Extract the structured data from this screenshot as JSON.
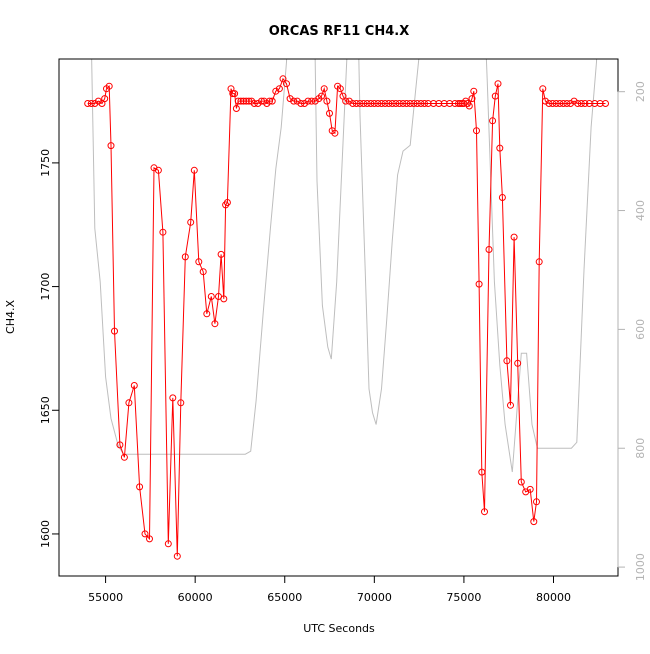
{
  "chart_data": {
    "type": "line",
    "title": "ORCAS RF11 CH4.X",
    "xlabel": "UTC Seconds",
    "ylabel": "CH4.X",
    "xlim": [
      52400,
      83600
    ],
    "ylim": [
      1583,
      1792
    ],
    "xticks": [
      55000,
      60000,
      65000,
      70000,
      75000,
      80000
    ],
    "yticks": [
      1600,
      1650,
      1700,
      1750
    ],
    "y2lim": [
      1015,
      145
    ],
    "y2ticks": [
      200,
      400,
      600,
      800,
      1000
    ],
    "colors": {
      "ch4": "#ff0000",
      "secondary": "#bebebe"
    },
    "series": [
      {
        "values": [
          [
            54000,
            1774
          ],
          [
            54200,
            1774
          ],
          [
            54400,
            1774
          ],
          [
            54600,
            1775
          ],
          [
            54800,
            1774
          ],
          [
            54950,
            1776
          ],
          [
            55050,
            1780
          ],
          [
            55200,
            1781
          ],
          [
            55300,
            1757
          ],
          [
            55500,
            1682
          ],
          [
            55800,
            1636
          ],
          [
            56050,
            1631
          ],
          [
            56300,
            1653
          ],
          [
            56600,
            1660
          ],
          [
            56900,
            1619
          ],
          [
            57200,
            1600
          ],
          [
            57450,
            1598
          ],
          [
            57700,
            1748
          ],
          [
            57950,
            1747
          ],
          [
            58200,
            1722
          ],
          [
            58500,
            1596
          ],
          [
            58750,
            1655
          ],
          [
            59000,
            1591
          ],
          [
            59200,
            1653
          ],
          [
            59450,
            1712
          ],
          [
            59750,
            1726
          ],
          [
            59950,
            1747
          ],
          [
            60200,
            1710
          ],
          [
            60450,
            1706
          ],
          [
            60650,
            1689
          ],
          [
            60900,
            1696
          ],
          [
            61100,
            1685
          ],
          [
            61300,
            1696
          ],
          [
            61450,
            1713
          ],
          [
            61600,
            1695
          ],
          [
            61700,
            1733
          ],
          [
            61800,
            1734
          ],
          [
            62000,
            1780
          ],
          [
            62100,
            1778
          ],
          [
            62200,
            1778
          ],
          [
            62300,
            1772
          ],
          [
            62400,
            1775
          ],
          [
            62550,
            1775
          ],
          [
            62700,
            1775
          ],
          [
            62850,
            1775
          ],
          [
            63000,
            1775
          ],
          [
            63150,
            1775
          ],
          [
            63300,
            1774
          ],
          [
            63500,
            1774
          ],
          [
            63700,
            1775
          ],
          [
            63850,
            1775
          ],
          [
            64000,
            1774
          ],
          [
            64150,
            1775
          ],
          [
            64300,
            1775
          ],
          [
            64500,
            1779
          ],
          [
            64700,
            1780
          ],
          [
            64900,
            1784
          ],
          [
            65100,
            1782
          ],
          [
            65300,
            1776
          ],
          [
            65500,
            1775
          ],
          [
            65700,
            1775
          ],
          [
            65900,
            1774
          ],
          [
            66100,
            1774
          ],
          [
            66300,
            1775
          ],
          [
            66500,
            1775
          ],
          [
            66700,
            1775
          ],
          [
            66900,
            1776
          ],
          [
            67050,
            1777
          ],
          [
            67200,
            1780
          ],
          [
            67350,
            1775
          ],
          [
            67500,
            1770
          ],
          [
            67650,
            1763
          ],
          [
            67800,
            1762
          ],
          [
            67950,
            1781
          ],
          [
            68100,
            1780
          ],
          [
            68250,
            1777
          ],
          [
            68400,
            1775
          ],
          [
            68600,
            1775
          ],
          [
            68800,
            1774
          ],
          [
            69000,
            1774
          ],
          [
            69200,
            1774
          ],
          [
            69400,
            1774
          ],
          [
            69600,
            1774
          ],
          [
            69800,
            1774
          ],
          [
            70000,
            1774
          ],
          [
            70200,
            1774
          ],
          [
            70400,
            1774
          ],
          [
            70600,
            1774
          ],
          [
            70800,
            1774
          ],
          [
            71000,
            1774
          ],
          [
            71200,
            1774
          ],
          [
            71400,
            1774
          ],
          [
            71600,
            1774
          ],
          [
            71800,
            1774
          ],
          [
            72000,
            1774
          ],
          [
            72200,
            1774
          ],
          [
            72400,
            1774
          ],
          [
            72600,
            1774
          ],
          [
            72800,
            1774
          ],
          [
            73000,
            1774
          ],
          [
            73300,
            1774
          ],
          [
            73600,
            1774
          ],
          [
            73900,
            1774
          ],
          [
            74200,
            1774
          ],
          [
            74500,
            1774
          ],
          [
            74700,
            1774
          ],
          [
            74800,
            1774
          ],
          [
            74900,
            1774
          ],
          [
            75000,
            1774
          ],
          [
            75100,
            1775
          ],
          [
            75200,
            1774
          ],
          [
            75300,
            1773
          ],
          [
            75450,
            1776
          ],
          [
            75550,
            1779
          ],
          [
            75700,
            1763
          ],
          [
            75850,
            1701
          ],
          [
            76000,
            1625
          ],
          [
            76150,
            1609
          ],
          [
            76400,
            1715
          ],
          [
            76600,
            1767
          ],
          [
            76750,
            1777
          ],
          [
            76900,
            1782
          ],
          [
            77000,
            1756
          ],
          [
            77150,
            1736
          ],
          [
            77400,
            1670
          ],
          [
            77600,
            1652
          ],
          [
            77800,
            1720
          ],
          [
            78000,
            1669
          ],
          [
            78200,
            1621
          ],
          [
            78450,
            1617
          ],
          [
            78700,
            1618
          ],
          [
            78900,
            1605
          ],
          [
            79050,
            1613
          ],
          [
            79200,
            1710
          ],
          [
            79400,
            1780
          ],
          [
            79550,
            1775
          ],
          [
            79750,
            1774
          ],
          [
            79950,
            1774
          ],
          [
            80150,
            1774
          ],
          [
            80350,
            1774
          ],
          [
            80550,
            1774
          ],
          [
            80750,
            1774
          ],
          [
            80950,
            1774
          ],
          [
            81150,
            1775
          ],
          [
            81350,
            1774
          ],
          [
            81550,
            1774
          ],
          [
            81750,
            1774
          ],
          [
            82000,
            1774
          ],
          [
            82300,
            1774
          ],
          [
            82600,
            1774
          ],
          [
            82900,
            1774
          ]
        ]
      },
      {
        "axis": "right",
        "values": [
          [
            54100,
            -50
          ],
          [
            54400,
            430
          ],
          [
            54700,
            520
          ],
          [
            55000,
            680
          ],
          [
            55300,
            750
          ],
          [
            55700,
            795
          ],
          [
            56000,
            810
          ],
          [
            56400,
            810
          ],
          [
            57000,
            810
          ],
          [
            58000,
            810
          ],
          [
            59000,
            810
          ],
          [
            60000,
            810
          ],
          [
            61000,
            810
          ],
          [
            62000,
            810
          ],
          [
            62800,
            810
          ],
          [
            63100,
            805
          ],
          [
            63400,
            720
          ],
          [
            63800,
            570
          ],
          [
            64200,
            430
          ],
          [
            64500,
            330
          ],
          [
            64800,
            260
          ],
          [
            65100,
            150
          ],
          [
            65300,
            -50
          ],
          [
            66600,
            -50
          ],
          [
            66800,
            350
          ],
          [
            67100,
            560
          ],
          [
            67400,
            630
          ],
          [
            67600,
            650
          ],
          [
            67900,
            520
          ],
          [
            68200,
            320
          ],
          [
            68500,
            120
          ],
          [
            68700,
            -50
          ],
          [
            69000,
            -50
          ],
          [
            69200,
            240
          ],
          [
            69500,
            510
          ],
          [
            69700,
            700
          ],
          [
            69900,
            740
          ],
          [
            70100,
            760
          ],
          [
            70400,
            700
          ],
          [
            70700,
            580
          ],
          [
            71000,
            450
          ],
          [
            71300,
            340
          ],
          [
            71600,
            300
          ],
          [
            72000,
            290
          ],
          [
            72300,
            200
          ],
          [
            72600,
            110
          ],
          [
            72800,
            -50
          ],
          [
            73000,
            130
          ],
          [
            73300,
            -50
          ],
          [
            73800,
            -50
          ],
          [
            74100,
            130
          ],
          [
            74500,
            -50
          ],
          [
            76000,
            -50
          ],
          [
            76300,
            180
          ],
          [
            76700,
            520
          ],
          [
            77000,
            660
          ],
          [
            77300,
            760
          ],
          [
            77700,
            840
          ],
          [
            77900,
            760
          ],
          [
            78200,
            640
          ],
          [
            78500,
            640
          ],
          [
            78800,
            760
          ],
          [
            79100,
            800
          ],
          [
            79400,
            800
          ],
          [
            80000,
            800
          ],
          [
            81000,
            800
          ],
          [
            81300,
            790
          ],
          [
            81700,
            500
          ],
          [
            82100,
            260
          ],
          [
            82400,
            150
          ],
          [
            82600,
            -50
          ]
        ]
      }
    ]
  }
}
